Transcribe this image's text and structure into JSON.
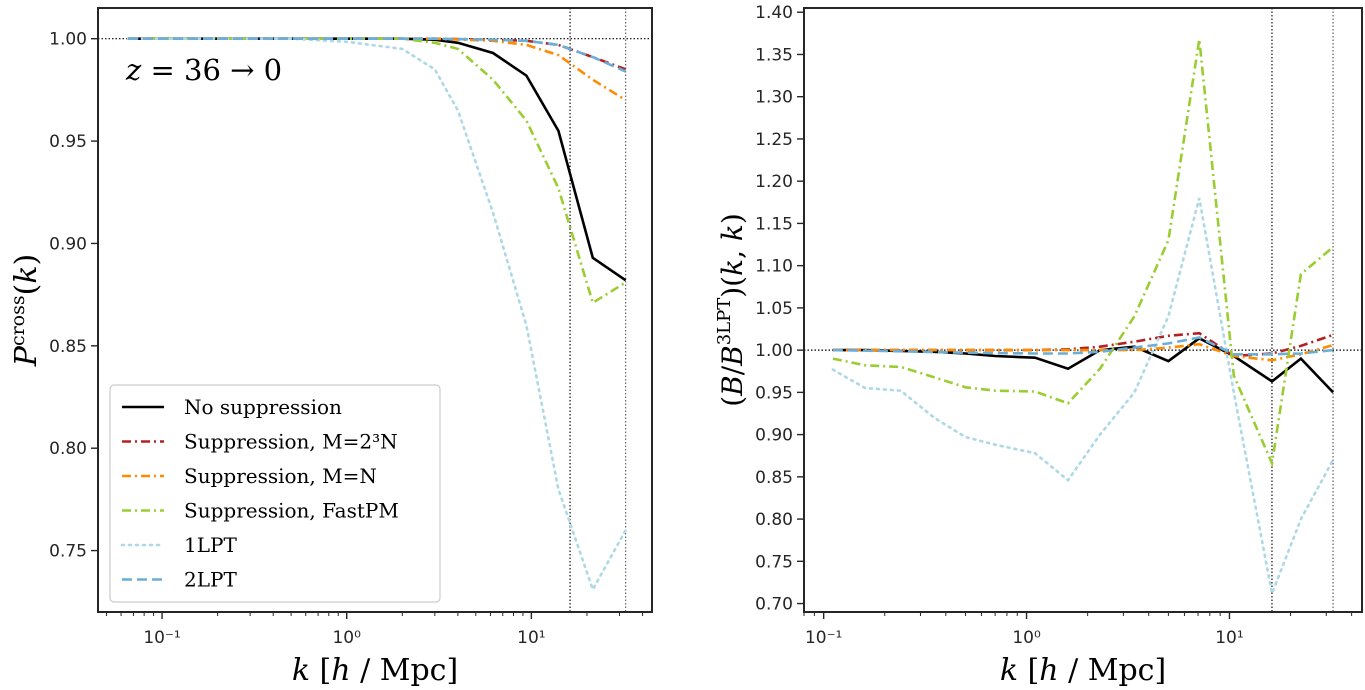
{
  "chart_data": [
    {
      "type": "line",
      "panel": "left",
      "xscale": "log",
      "xlim": [
        0.045,
        45
      ],
      "ylim": [
        0.72,
        1.015
      ],
      "xlabel": "k [h / Mpc]",
      "ylabel": "P^cross(k)",
      "yticks": [
        0.75,
        0.8,
        0.85,
        0.9,
        0.95,
        1.0
      ],
      "ytick_labels": [
        "0.75",
        "0.80",
        "0.85",
        "0.90",
        "0.95",
        "1.00"
      ],
      "xticks": [
        0.1,
        1,
        10
      ],
      "xtick_labels": [
        "10⁻¹",
        "10⁰",
        "10¹"
      ],
      "annotation": "z = 36 → 0",
      "hline": 1.0,
      "vlines": [
        16.2,
        32.4
      ],
      "legend": "lower-left",
      "grid": false,
      "series": [
        {
          "name": "No suppression",
          "color": "#000000",
          "style": "solid",
          "x": [
            0.0654,
            0.1,
            0.2,
            0.5,
            1,
            2,
            3,
            4,
            6.2,
            9.4,
            14,
            21.5,
            32.4
          ],
          "y": [
            1.0,
            1.0,
            1.0,
            1.0,
            1.0,
            1.0,
            0.9995,
            0.998,
            0.993,
            0.982,
            0.955,
            0.893,
            0.882
          ]
        },
        {
          "name": "Suppression, M=2³N",
          "color": "#b22222",
          "style": "dashdot",
          "x": [
            0.0654,
            0.1,
            0.5,
            1,
            3,
            6.2,
            9.4,
            14,
            21.5,
            32.4
          ],
          "y": [
            1.0,
            1.0,
            1.0,
            1.0,
            1.0,
            0.9995,
            0.999,
            0.997,
            0.991,
            0.985
          ]
        },
        {
          "name": "Suppression, M=N",
          "color": "#ff8c00",
          "style": "dashdot",
          "x": [
            0.0654,
            0.1,
            0.5,
            1,
            3,
            6.2,
            9.4,
            14,
            21.5,
            32.4
          ],
          "y": [
            1.0,
            1.0,
            1.0,
            1.0,
            1.0,
            0.999,
            0.997,
            0.992,
            0.98,
            0.97
          ]
        },
        {
          "name": "Suppression, FastPM",
          "color": "#9acd32",
          "style": "dashdot",
          "x": [
            0.0654,
            0.1,
            0.5,
            1,
            2,
            3,
            4,
            6.2,
            9.4,
            14,
            21.5,
            32.4
          ],
          "y": [
            1.0,
            1.0,
            1.0,
            1.0,
            1.0,
            0.998,
            0.995,
            0.98,
            0.96,
            0.927,
            0.871,
            0.881
          ]
        },
        {
          "name": "1LPT",
          "color": "#add8e6",
          "style": "dotted",
          "x": [
            0.0654,
            0.1,
            0.5,
            1,
            2,
            3,
            4,
            6.2,
            9.4,
            14,
            21.5,
            32.4
          ],
          "y": [
            1.0,
            1.0,
            1.0,
            0.9985,
            0.995,
            0.985,
            0.965,
            0.915,
            0.86,
            0.78,
            0.731,
            0.76
          ]
        },
        {
          "name": "2LPT",
          "color": "#6baed6",
          "style": "dashed",
          "x": [
            0.0654,
            0.1,
            0.5,
            1,
            3,
            6.2,
            9.4,
            14,
            21.5,
            32.4
          ],
          "y": [
            1.0,
            1.0,
            1.0,
            1.0,
            1.0,
            0.9995,
            0.999,
            0.997,
            0.991,
            0.984
          ]
        }
      ]
    },
    {
      "type": "line",
      "panel": "right",
      "xscale": "log",
      "xlim": [
        0.08,
        45
      ],
      "ylim": [
        0.69,
        1.405
      ],
      "xlabel": "k [h / Mpc]",
      "ylabel": "(B/B^3LPT)(k, k)",
      "yticks": [
        0.7,
        0.75,
        0.8,
        0.85,
        0.9,
        0.95,
        1.0,
        1.05,
        1.1,
        1.15,
        1.2,
        1.25,
        1.3,
        1.35,
        1.4
      ],
      "ytick_labels": [
        "0.70",
        "0.75",
        "0.80",
        "0.85",
        "0.90",
        "0.95",
        "1.00",
        "1.05",
        "1.10",
        "1.15",
        "1.20",
        "1.25",
        "1.30",
        "1.35",
        "1.40"
      ],
      "xticks": [
        0.1,
        1,
        10
      ],
      "xtick_labels": [
        "10⁻¹",
        "10⁰",
        "10¹"
      ],
      "hline": 1.0,
      "vlines": [
        16.2,
        32.4
      ],
      "grid": false,
      "series": [
        {
          "name": "No suppression",
          "color": "#000000",
          "style": "solid",
          "x": [
            0.111,
            0.16,
            0.24,
            0.35,
            0.5,
            0.7,
            1.1,
            1.6,
            2.3,
            3.4,
            5,
            7.1,
            10.5,
            16.2,
            22.5,
            32.4
          ],
          "y": [
            1.0,
            1.0,
            0.999,
            0.998,
            0.996,
            0.993,
            0.991,
            0.978,
            1.0,
            1.004,
            0.987,
            1.014,
            0.993,
            0.963,
            0.99,
            0.95
          ]
        },
        {
          "name": "Suppression, M=2³N",
          "color": "#b22222",
          "style": "dashdot",
          "x": [
            0.111,
            0.2,
            0.5,
            1.1,
            1.6,
            2.3,
            3.4,
            5,
            7.1,
            10.5,
            16.2,
            22.5,
            32.4
          ],
          "y": [
            1.0,
            1.0,
            1.0,
            1.0,
            1.001,
            1.004,
            1.01,
            1.017,
            1.02,
            0.993,
            0.996,
            1.005,
            1.018
          ]
        },
        {
          "name": "Suppression, M=N",
          "color": "#ff8c00",
          "style": "dashdot",
          "x": [
            0.111,
            0.2,
            0.5,
            1.1,
            1.6,
            2.3,
            3.4,
            5,
            7.1,
            10.5,
            16.2,
            22.5,
            32.4
          ],
          "y": [
            1.0,
            1.0,
            1.0,
            1.0,
            1.0,
            1.0,
            1.0,
            1.003,
            1.007,
            0.993,
            0.988,
            0.995,
            1.006
          ]
        },
        {
          "name": "Suppression, FastPM",
          "color": "#9acd32",
          "style": "dashdot",
          "x": [
            0.111,
            0.16,
            0.24,
            0.35,
            0.5,
            0.7,
            1.1,
            1.6,
            2.3,
            3.4,
            5,
            7.1,
            10.5,
            16.2,
            22.5,
            32.4
          ],
          "y": [
            0.99,
            0.982,
            0.98,
            0.968,
            0.956,
            0.952,
            0.951,
            0.937,
            0.978,
            1.04,
            1.13,
            1.368,
            0.97,
            0.866,
            1.09,
            1.122
          ]
        },
        {
          "name": "1LPT",
          "color": "#add8e6",
          "style": "dotted",
          "x": [
            0.111,
            0.16,
            0.24,
            0.35,
            0.5,
            0.7,
            1.1,
            1.6,
            2.3,
            3.4,
            5,
            7.1,
            10.5,
            16.2,
            22.5,
            32.4
          ],
          "y": [
            0.977,
            0.955,
            0.952,
            0.92,
            0.897,
            0.888,
            0.878,
            0.846,
            0.9,
            0.95,
            1.04,
            1.18,
            0.95,
            0.712,
            0.8,
            0.87
          ]
        },
        {
          "name": "2LPT",
          "color": "#6baed6",
          "style": "dashed",
          "x": [
            0.111,
            0.2,
            0.5,
            1.1,
            1.6,
            2.3,
            3.4,
            5,
            7.1,
            10.5,
            16.2,
            22.5,
            32.4
          ],
          "y": [
            1.0,
            0.999,
            0.997,
            0.996,
            0.996,
            0.998,
            1.003,
            1.008,
            1.015,
            0.995,
            0.995,
            0.996,
            1.0
          ]
        }
      ]
    }
  ]
}
